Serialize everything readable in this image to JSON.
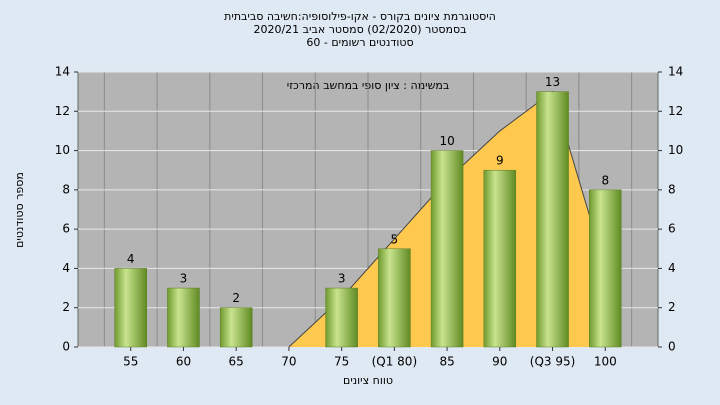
{
  "chart_data": {
    "type": "bar",
    "title": [
      "היסטוגרמת ציונים בקורס - אקו-פילוסופיה:חשיבה סביבתית",
      "בסמסטר  (02/2020)  סמסטר אביב 2020/21",
      "סטודנטים רשומים - 60"
    ],
    "annotation": "במשימה : ציון סופי במחשב המרכזי",
    "y_label": "מספר סטודנטים",
    "x_label": "טווח ציונים",
    "categories": [
      "55",
      "60",
      "65",
      "70",
      "75",
      "(Q1 80)",
      "85",
      "90",
      "(Q3 95)",
      "100"
    ],
    "values": [
      4,
      3,
      2,
      0,
      3,
      5,
      10,
      9,
      13,
      8
    ],
    "color": "#9dc35a",
    "area": {
      "color": "#ffc94f",
      "values": [
        null,
        null,
        null,
        0,
        2.5,
        5.5,
        8.5,
        11,
        13,
        4
      ]
    },
    "ylim": [
      0,
      14
    ],
    "yticks": [
      0,
      2,
      4,
      6,
      8,
      10,
      12,
      14
    ],
    "grid": true
  }
}
